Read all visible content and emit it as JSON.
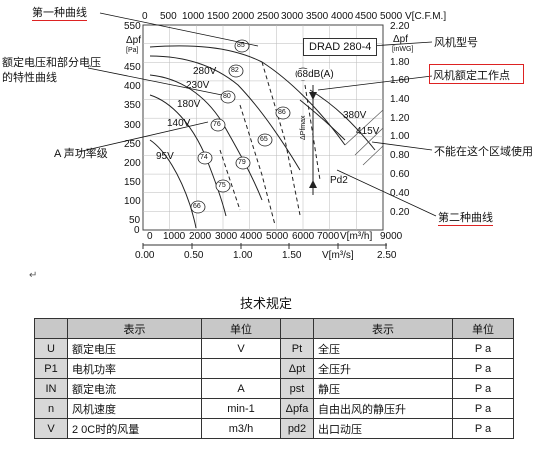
{
  "top_axis": {
    "ticks": [
      "0",
      "500",
      "1000",
      "1500",
      "2000",
      "2500",
      "3000",
      "3500",
      "4000",
      "4500",
      "5000"
    ],
    "unit": "V[C.F.M.]"
  },
  "left_axis": {
    "label_top": "Δpf",
    "label_unit": "[Pa]",
    "ticks": [
      "550",
      "500",
      "450",
      "400",
      "350",
      "300",
      "250",
      "200",
      "150",
      "100",
      "50",
      "0"
    ]
  },
  "right_axis": {
    "label_top": "Δpf",
    "label_unit": "[inWG]",
    "ticks": [
      "2.20",
      "2.00",
      "1.80",
      "1.60",
      "1.40",
      "1.20",
      "1.00",
      "0.80",
      "0.60",
      "0.40",
      "0.20"
    ]
  },
  "bottom_axis_1": {
    "ticks": [
      "0",
      "1000",
      "2000",
      "3000",
      "4000",
      "5000",
      "6000",
      "7000",
      "8000",
      "9000"
    ],
    "unit": "V[m³/h]"
  },
  "bottom_axis_2": {
    "ticks": [
      "0.00",
      "0.50",
      "1.00",
      "1.50",
      "2.00",
      "2.50"
    ],
    "unit": "V[m³/s]"
  },
  "model_box": "DRAD 280-4",
  "curve_voltages": [
    "280V",
    "230V",
    "180V",
    "140V",
    "95V",
    "380V",
    "415V"
  ],
  "sound_levels": [
    "85",
    "82",
    "80",
    "76",
    "74",
    "75",
    "66",
    "65",
    "68",
    "79",
    "86"
  ],
  "sound_unit": "68dB(A)",
  "inner_labels": {
    "pd2": "Pd2",
    "delta_pf": "ΔPfmax"
  },
  "annotations": {
    "first_curve": "第一种曲线",
    "rated_partial": "额定电压和部分电压\n的特性曲线",
    "sound_power": "A 声功率级",
    "model": "风机型号",
    "rated_point": "风机额定工作点",
    "not_usable": "不能在这个区域使用",
    "second_curve": "第二种曲线"
  },
  "return_mark": "↵",
  "table": {
    "title": "技术规定",
    "headers": [
      "表示",
      "单位",
      "表示",
      "单位"
    ],
    "rows": [
      {
        "sym1": "U",
        "desc1": "额定电压",
        "unit1": "V",
        "sym2": "Pt",
        "desc2": "全压",
        "unit2": "P a"
      },
      {
        "sym1": "P1",
        "desc1": "电机功率",
        "unit1": "",
        "sym2": "Δpt",
        "desc2": "全压升",
        "unit2": "P a"
      },
      {
        "sym1": "IN",
        "desc1": "额定电流",
        "unit1": "A",
        "sym2": "pst",
        "desc2": "静压",
        "unit2": "P a"
      },
      {
        "sym1": "n",
        "desc1": "风机速度",
        "unit1": "min-1",
        "sym2": "Δpfa",
        "desc2": "自由出风的静压升",
        "unit2": "P a"
      },
      {
        "sym1": "V",
        "desc1": "2 0C时的风量",
        "unit1": "m3/h",
        "sym2": "pd2",
        "desc2": "出口动压",
        "unit2": "P a"
      }
    ]
  }
}
